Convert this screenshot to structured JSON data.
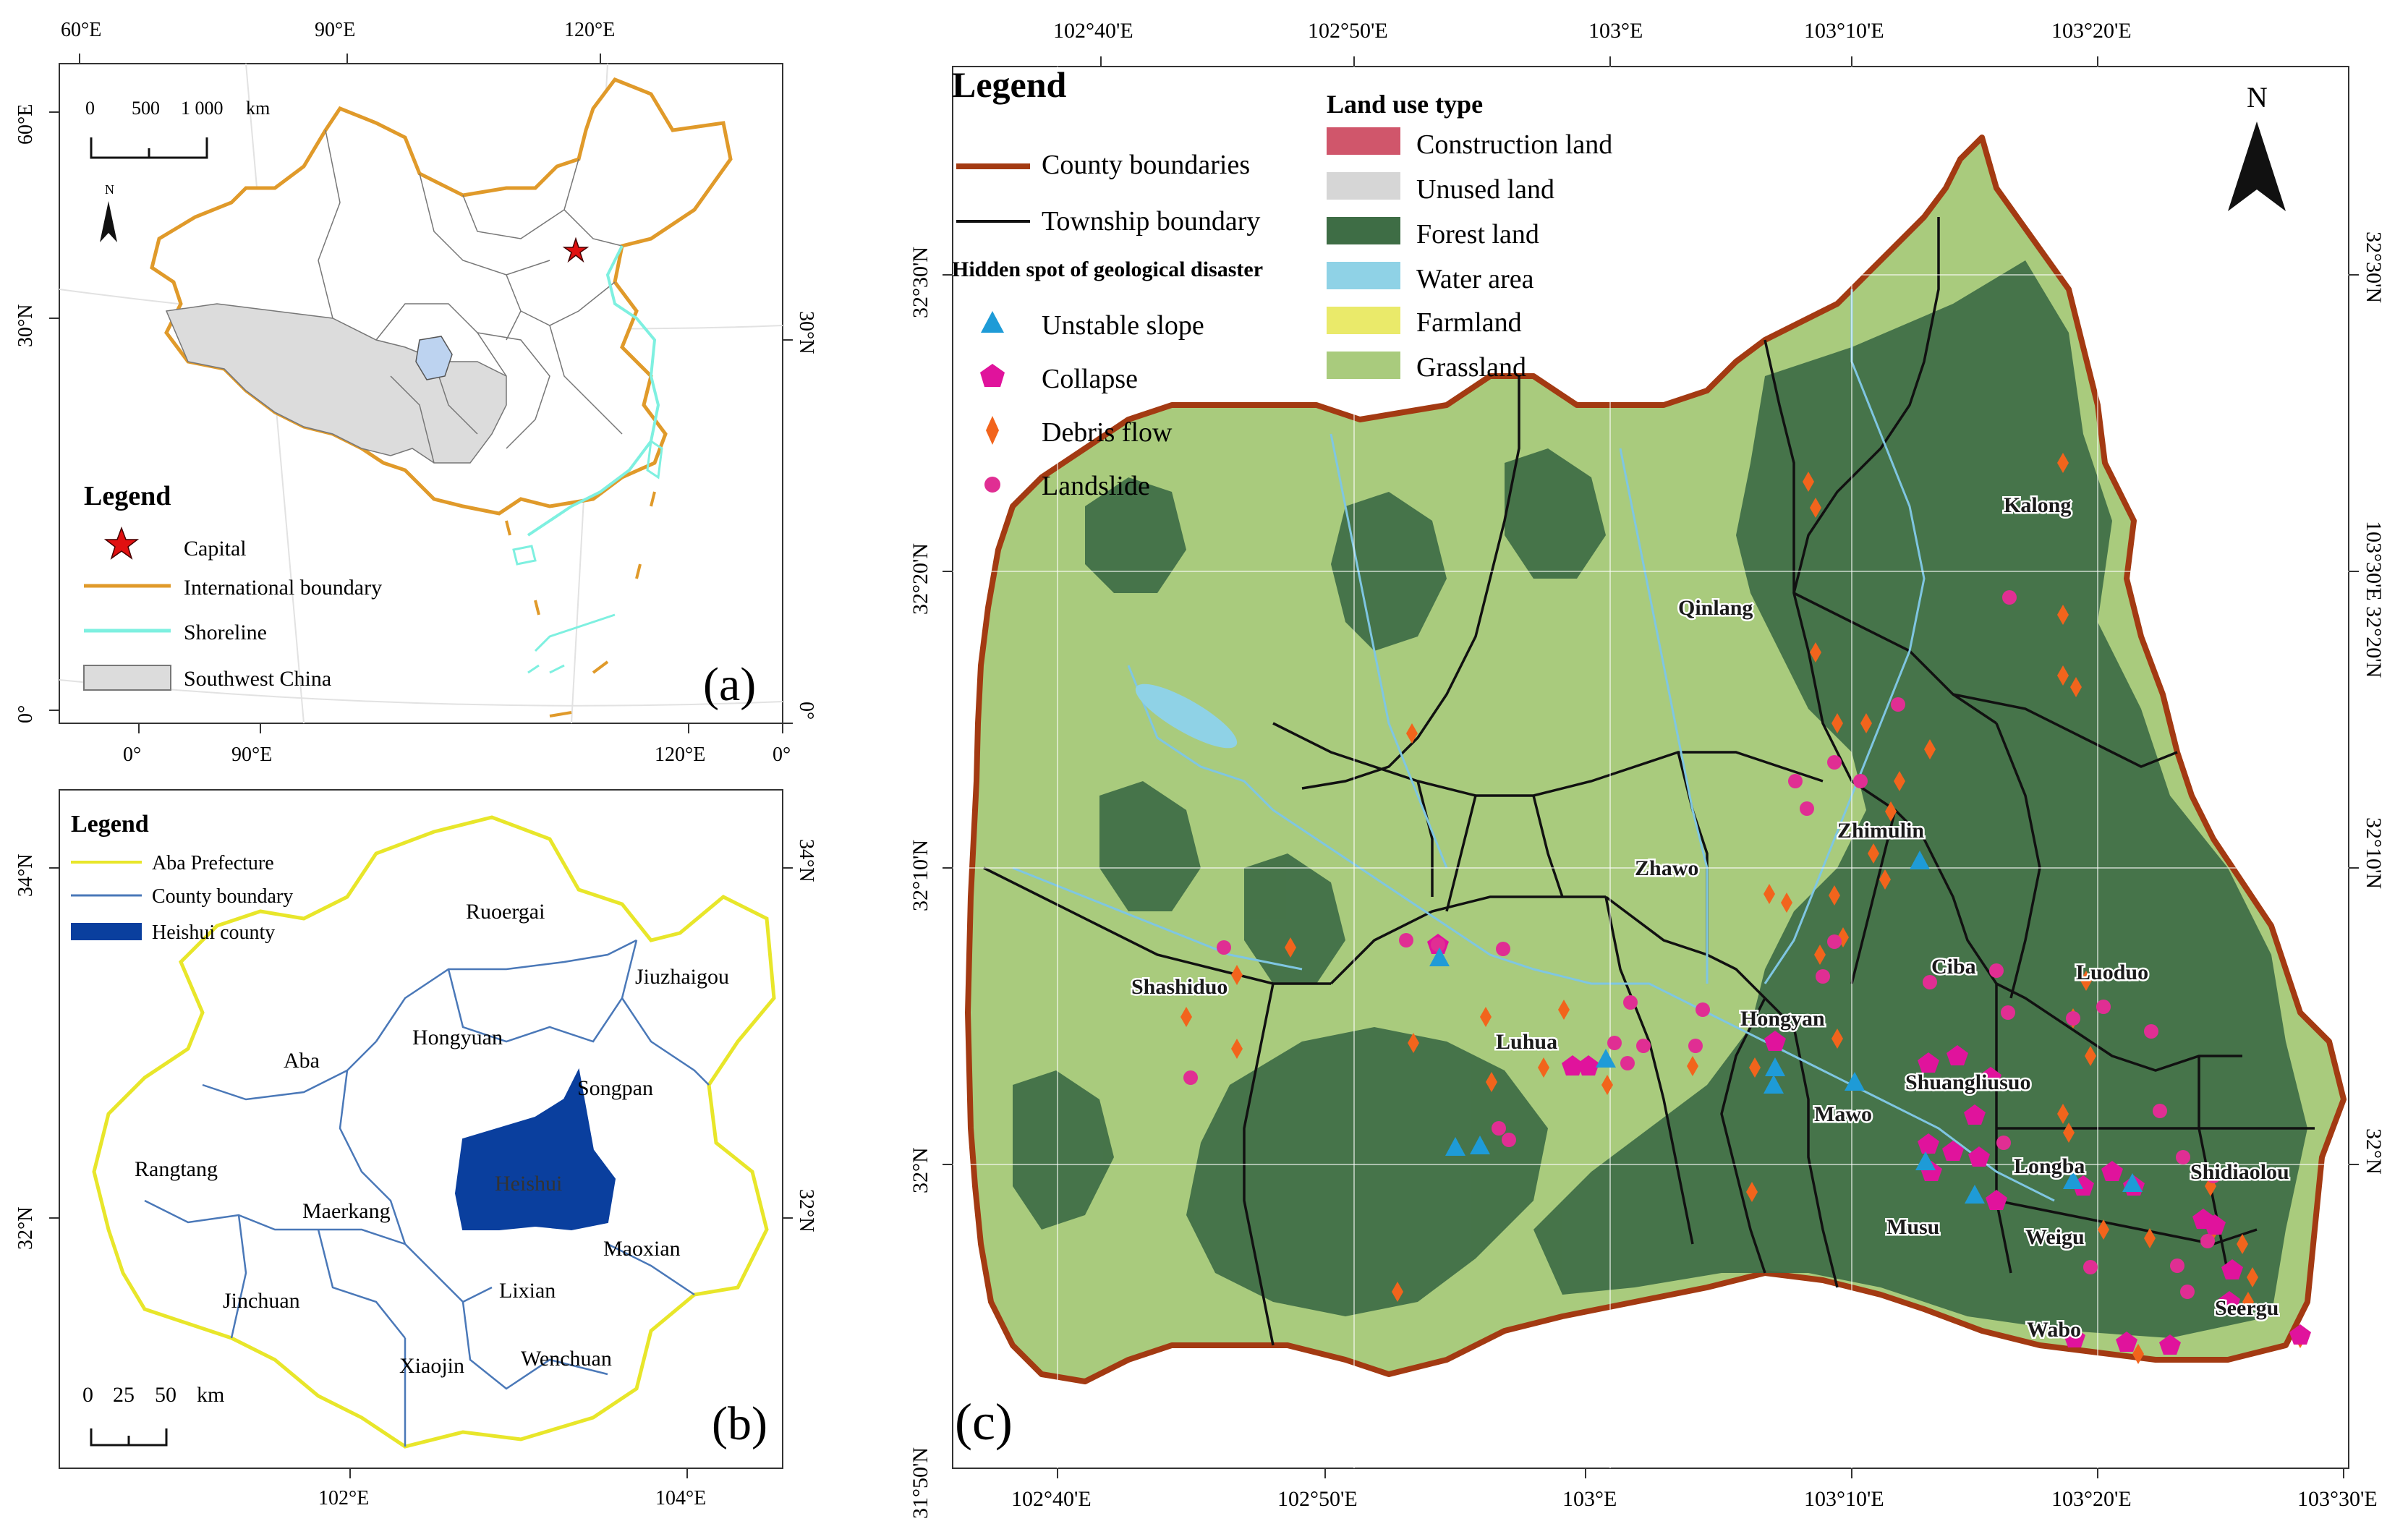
{
  "colors": {
    "international_boundary": "#E09A2A",
    "shoreline": "#7EF0E0",
    "southwest_china": "#DCDCDC",
    "aba_prefecture": "#E8E62A",
    "county_boundary_b": "#4A78B8",
    "heishui_fill": "#0A3F9E",
    "county_boundary_c": "#A33A12",
    "township_boundary": "#111111",
    "construction_land": "#D0566B",
    "unused_land": "#D6D6D6",
    "forest_land": "#3E6D45",
    "water_area": "#8FD2E6",
    "farmland": "#EAEA6A",
    "grassland": "#A9CB7D",
    "unstable_slope": "#1E9BD7",
    "collapse": "#E0139C",
    "debris_flow": "#F2641C",
    "landslide": "#E02E93"
  },
  "panel_a": {
    "label": "(a)",
    "top_ticks": [
      "60°E",
      "90°E",
      "120°E"
    ],
    "left_ticks": [
      "60°E",
      "30°N",
      "0°"
    ],
    "right_ticks": [
      "30°N",
      "0°"
    ],
    "bottom_ticks": [
      "0°",
      "90°E",
      "120°E",
      "0°"
    ],
    "scale_labels": [
      "0",
      "500",
      "1 000",
      "km"
    ],
    "north": "N",
    "legend": {
      "title": "Legend",
      "items": [
        {
          "label": "Capital",
          "icon": "red-star-icon"
        },
        {
          "label": "International boundary",
          "icon": "orange-line-icon"
        },
        {
          "label": "Shoreline",
          "icon": "cyan-line-icon"
        },
        {
          "label": "Southwest China",
          "icon": "grey-box-icon"
        }
      ]
    }
  },
  "panel_b": {
    "label": "(b)",
    "left_ticks": [
      "34°N",
      "32°N"
    ],
    "right_ticks": [
      "34°N",
      "32°N"
    ],
    "bottom_ticks": [
      "102°E",
      "104°E"
    ],
    "scale_labels": [
      "0",
      "25",
      "50",
      "km"
    ],
    "legend": {
      "title": "Legend",
      "items": [
        {
          "label": "Aba Prefecture",
          "icon": "yellow-line-icon"
        },
        {
          "label": "County boundary",
          "icon": "blue-line-icon"
        },
        {
          "label": "Heishui county",
          "icon": "blue-box-icon"
        }
      ]
    },
    "counties": [
      "Ruoergai",
      "Jiuzhaigou",
      "Aba",
      "Hongyuan",
      "Songpan",
      "Rangtang",
      "Maerkang",
      "Heishui",
      "Maoxian",
      "Jinchuan",
      "Lixian",
      "Xiaojin",
      "Wenchuan"
    ]
  },
  "panel_c": {
    "label": "(c)",
    "top_ticks": [
      "102°40'E",
      "102°50'E",
      "103°E",
      "103°10'E",
      "103°20'E"
    ],
    "bottom_ticks": [
      "102°40'E",
      "102°50'E",
      "103°E",
      "103°10'E",
      "103°20'E",
      "103°30'E"
    ],
    "left_ticks": [
      "32°30'N",
      "32°20'N",
      "32°10'N",
      "32°N",
      "31°50'N"
    ],
    "right_ticks": [
      "32°30'N",
      "103°30'E 32°20'N",
      "32°10'N",
      "32°N"
    ],
    "north": "N",
    "legend": {
      "title": "Legend",
      "lines": [
        {
          "label": "County boundaries",
          "icon": "brown-line-icon"
        },
        {
          "label": "Township boundary",
          "icon": "black-line-icon"
        }
      ],
      "hazard_title": "Hidden spot of geological disaster",
      "hazards": [
        {
          "label": "Unstable slope",
          "icon": "triangle-icon"
        },
        {
          "label": "Collapse",
          "icon": "pentagon-icon"
        },
        {
          "label": "Debris flow",
          "icon": "diamond-icon"
        },
        {
          "label": "Landslide",
          "icon": "circle-icon"
        }
      ],
      "landuse_title": "Land use type",
      "landuse": [
        {
          "label": "Construction land"
        },
        {
          "label": "Unused land"
        },
        {
          "label": "Forest land"
        },
        {
          "label": "Water area"
        },
        {
          "label": "Farmland"
        },
        {
          "label": "Grassland"
        }
      ]
    },
    "townships": [
      "Kalong",
      "Qinlang",
      "Zhimulin",
      "Zhawo",
      "Ciba",
      "Luoduo",
      "Shashiduo",
      "Hongyan",
      "Luhua",
      "Shuangliusuo",
      "Mawo",
      "Longba",
      "Shidiaolou",
      "Musu",
      "Weigu",
      "Seergu",
      "Wabo"
    ]
  }
}
